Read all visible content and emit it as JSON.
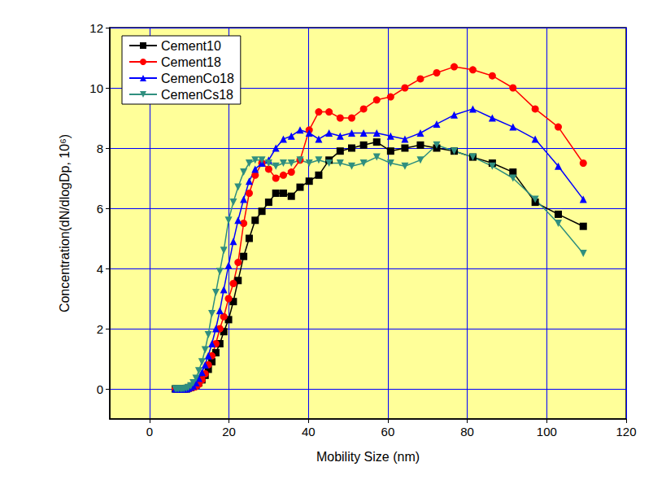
{
  "chart_data": {
    "type": "line",
    "x_label": "Mobility Size (nm)",
    "y_label": "Concentration(dN/dlogDp, 10⁶)",
    "xlim": [
      -10,
      120
    ],
    "xticks": [
      0,
      20,
      40,
      60,
      80,
      100,
      120
    ],
    "ylim": [
      -1,
      12
    ],
    "yticks": [
      0,
      2,
      4,
      6,
      8,
      10,
      12
    ],
    "grid": true,
    "legend": "upper left",
    "x": [
      6.5,
      6.9,
      7.3,
      7.8,
      8.2,
      8.7,
      9.3,
      9.8,
      10.4,
      11.0,
      11.7,
      12.4,
      13.2,
      14.0,
      14.8,
      15.7,
      16.7,
      17.7,
      18.7,
      19.9,
      21.1,
      22.3,
      23.7,
      25.1,
      26.6,
      28.3,
      30.0,
      31.8,
      33.7,
      35.7,
      37.9,
      40.2,
      42.6,
      45.2,
      48.0,
      50.9,
      53.9,
      57.2,
      60.7,
      64.3,
      68.2,
      72.3,
      76.7,
      81.4,
      86.3,
      91.5,
      97.1,
      102.9,
      109.2
    ],
    "series": [
      {
        "name": "Cement10",
        "color": "#000000",
        "marker": "square",
        "values": [
          0,
          0,
          0,
          0,
          0,
          0,
          0,
          0.03,
          0.05,
          0.08,
          0.12,
          0.2,
          0.3,
          0.45,
          0.65,
          0.9,
          1.2,
          1.5,
          1.9,
          2.3,
          2.9,
          3.6,
          4.4,
          5.0,
          5.6,
          5.9,
          6.2,
          6.5,
          6.5,
          6.4,
          6.7,
          6.9,
          7.1,
          7.6,
          7.9,
          8.0,
          8.1,
          8.2,
          7.9,
          8.0,
          8.1,
          8.0,
          7.9,
          7.7,
          7.5,
          7.2,
          6.2,
          5.8,
          5.4
        ]
      },
      {
        "name": "Cement18",
        "color": "#ff0000",
        "marker": "circle",
        "values": [
          0,
          0,
          0,
          0,
          0,
          0,
          0,
          0.02,
          0.03,
          0.05,
          0.08,
          0.15,
          0.3,
          0.5,
          0.8,
          1.1,
          1.5,
          2.0,
          2.4,
          3.0,
          3.5,
          4.2,
          5.5,
          6.5,
          7.1,
          7.5,
          7.3,
          7.0,
          7.1,
          7.2,
          7.6,
          8.6,
          9.2,
          9.2,
          9.0,
          9.0,
          9.3,
          9.6,
          9.7,
          10.0,
          10.3,
          10.5,
          10.7,
          10.6,
          10.4,
          10.0,
          9.3,
          8.7,
          7.5
        ]
      },
      {
        "name": "CemenCo18",
        "color": "#0000ff",
        "marker": "triangle-up",
        "values": [
          0,
          0,
          0,
          0,
          0,
          0,
          0,
          0.03,
          0.06,
          0.1,
          0.2,
          0.35,
          0.55,
          0.8,
          1.1,
          1.5,
          2.0,
          2.6,
          3.3,
          4.1,
          4.9,
          5.6,
          6.3,
          6.9,
          7.3,
          7.5,
          7.6,
          8.0,
          8.3,
          8.4,
          8.6,
          8.5,
          8.3,
          8.5,
          8.4,
          8.5,
          8.5,
          8.5,
          8.4,
          8.3,
          8.5,
          8.8,
          9.1,
          9.3,
          9.0,
          8.7,
          8.3,
          7.4,
          6.3
        ]
      },
      {
        "name": "CemenCs18",
        "color": "#2f8f7f",
        "marker": "triangle-down",
        "values": [
          0,
          0,
          0,
          0,
          0,
          0,
          0.02,
          0.05,
          0.1,
          0.2,
          0.35,
          0.6,
          0.9,
          1.3,
          1.8,
          2.5,
          3.2,
          3.9,
          4.6,
          5.6,
          6.2,
          6.7,
          7.2,
          7.5,
          7.6,
          7.6,
          7.5,
          7.4,
          7.5,
          7.5,
          7.6,
          7.5,
          7.6,
          7.5,
          7.5,
          7.4,
          7.5,
          7.7,
          7.5,
          7.4,
          7.6,
          8.1,
          7.9,
          7.7,
          7.4,
          7.0,
          6.3,
          5.5,
          4.5
        ]
      }
    ]
  }
}
